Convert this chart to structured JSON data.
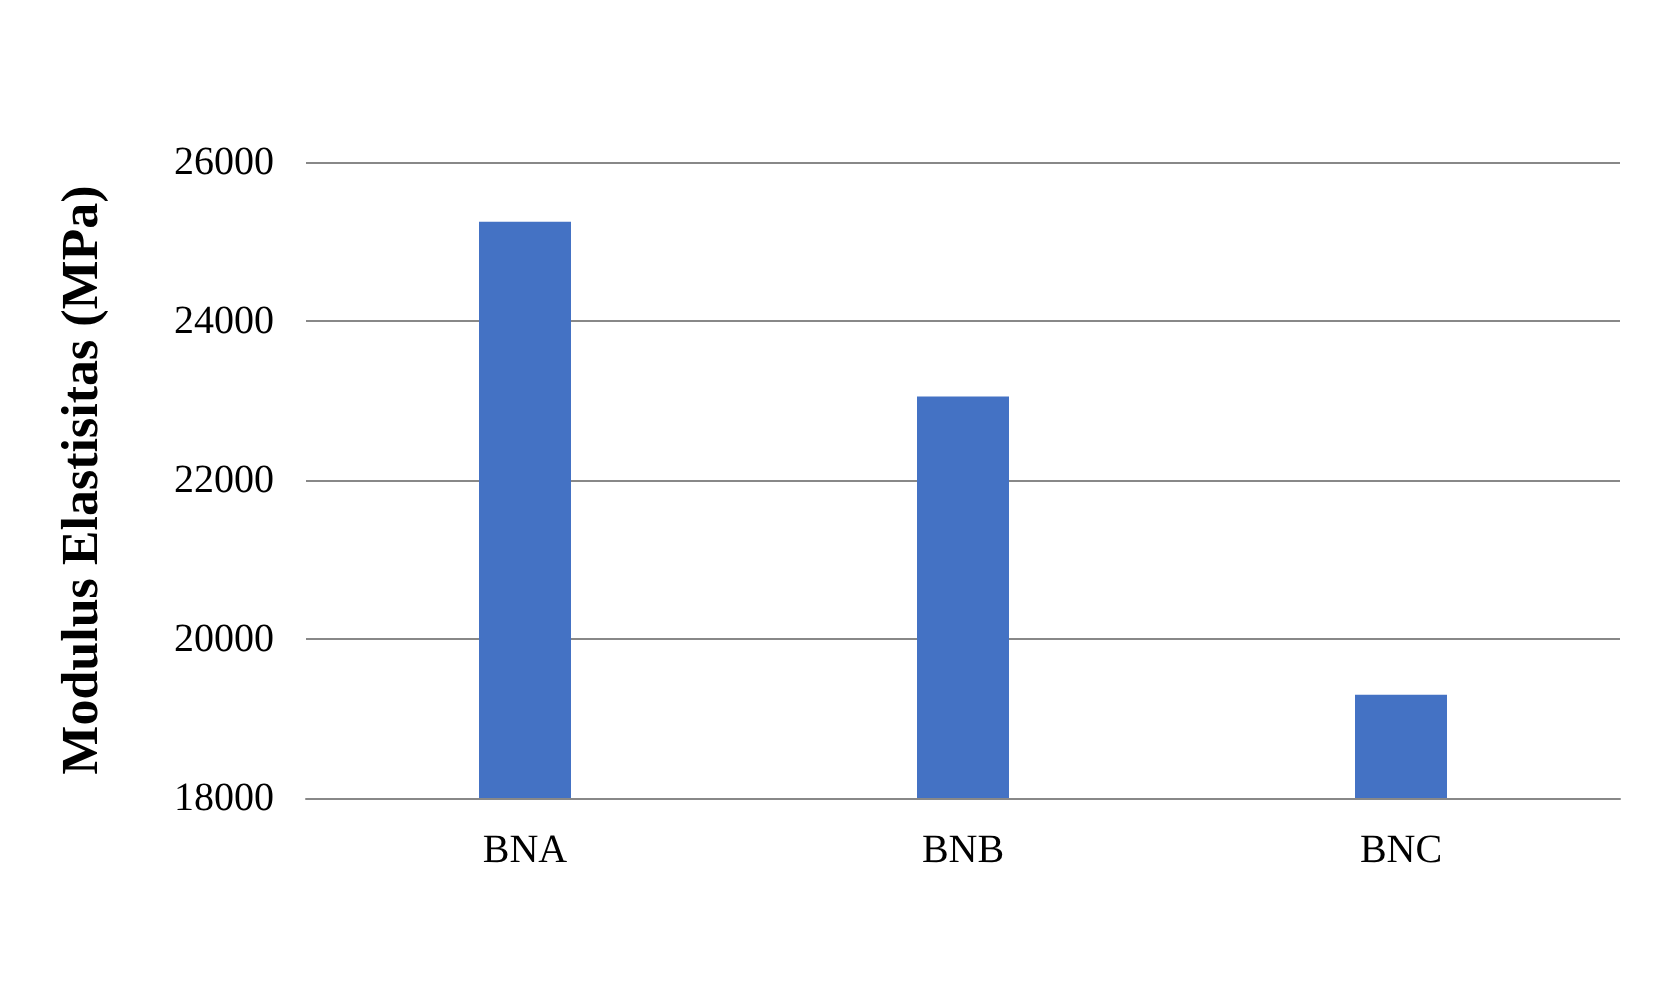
{
  "chart_data": {
    "type": "bar",
    "ylabel": "Modulus Elastisitas (MPa)",
    "categories": [
      "BNA",
      "BNB",
      "BNC"
    ],
    "values": [
      25250,
      23050,
      19300
    ],
    "color": "#4472c4",
    "ylim": [
      18000,
      26000
    ],
    "yticks": [
      18000,
      20000,
      22000,
      24000,
      26000
    ],
    "grid": "y"
  }
}
